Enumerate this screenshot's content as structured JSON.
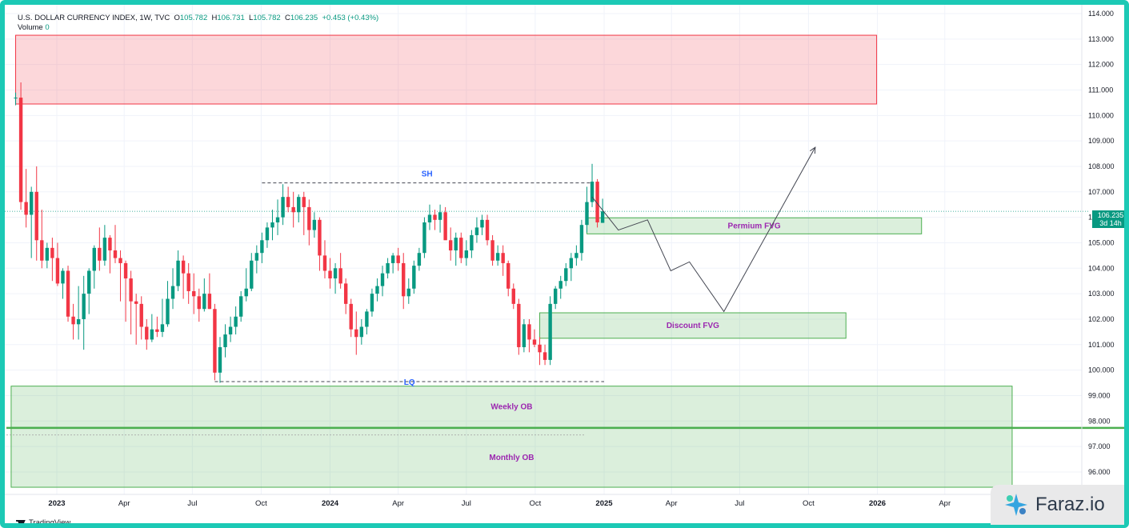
{
  "header": {
    "symbol": "U.S. DOLLAR CURRENCY INDEX, 1W, TVC",
    "open_label": "O",
    "open": "105.782",
    "high_label": "H",
    "high": "106.731",
    "low_label": "L",
    "low": "105.782",
    "close_label": "C",
    "close": "106.235",
    "change": "+0.453 (+0.43%)",
    "volume_label": "Volume",
    "volume": "0"
  },
  "price_tag": {
    "value": "106.235",
    "countdown": "3d 14h"
  },
  "brand": {
    "tradingview": "TradingView",
    "watermark": "Faraz.io"
  },
  "colors": {
    "up": "#089981",
    "down": "#f23645",
    "zone_green": "#4caf50",
    "zone_red": "#f23645",
    "label_purple": "#9c27b0",
    "annotation_blue": "#2962ff",
    "frame": "#1cc9b5"
  },
  "chart_data": {
    "type": "candlestick",
    "title": "U.S. DOLLAR CURRENCY INDEX, 1W, TVC",
    "timeframe": "1W",
    "ylim": [
      95.2,
      114.2
    ],
    "y_ticks": [
      "114.000",
      "113.000",
      "112.000",
      "111.000",
      "110.000",
      "109.000",
      "108.000",
      "107.000",
      "106.000",
      "105.000",
      "104.000",
      "103.000",
      "102.000",
      "101.000",
      "100.000",
      "99.000",
      "98.000",
      "97.000",
      "96.000"
    ],
    "x_ticks": [
      {
        "label": "2023",
        "date": "2023-01-01",
        "year": true
      },
      {
        "label": "Apr",
        "date": "2023-04-01"
      },
      {
        "label": "Jul",
        "date": "2023-07-01"
      },
      {
        "label": "Oct",
        "date": "2023-10-01"
      },
      {
        "label": "2024",
        "date": "2024-01-01",
        "year": true
      },
      {
        "label": "Apr",
        "date": "2024-04-01"
      },
      {
        "label": "Jul",
        "date": "2024-07-01"
      },
      {
        "label": "Oct",
        "date": "2024-10-01"
      },
      {
        "label": "2025",
        "date": "2025-01-01",
        "year": true
      },
      {
        "label": "Apr",
        "date": "2025-04-01"
      },
      {
        "label": "Jul",
        "date": "2025-07-01"
      },
      {
        "label": "Oct",
        "date": "2025-10-01"
      },
      {
        "label": "2026",
        "date": "2026-01-01",
        "year": true
      },
      {
        "label": "Apr",
        "date": "2026-04-01"
      }
    ],
    "candles": [
      {
        "t": "2022-11-07",
        "o": 110.7,
        "h": 110.9,
        "l": 110.4,
        "c": 110.7
      },
      {
        "t": "2022-11-14",
        "o": 110.7,
        "h": 111.3,
        "l": 106.3,
        "c": 106.6
      },
      {
        "t": "2022-11-21",
        "o": 106.6,
        "h": 107.9,
        "l": 105.6,
        "c": 106.1
      },
      {
        "t": "2022-11-28",
        "o": 106.1,
        "h": 107.2,
        "l": 104.4,
        "c": 107.0
      },
      {
        "t": "2022-12-05",
        "o": 107.0,
        "h": 108.0,
        "l": 104.3,
        "c": 105.1
      },
      {
        "t": "2022-12-12",
        "o": 105.1,
        "h": 106.3,
        "l": 104.0,
        "c": 104.3
      },
      {
        "t": "2022-12-19",
        "o": 104.3,
        "h": 105.0,
        "l": 104.0,
        "c": 104.8
      },
      {
        "t": "2022-12-26",
        "o": 104.8,
        "h": 105.2,
        "l": 103.5,
        "c": 104.4
      },
      {
        "t": "2023-01-02",
        "o": 104.4,
        "h": 105.0,
        "l": 103.3,
        "c": 103.4
      },
      {
        "t": "2023-01-09",
        "o": 103.4,
        "h": 104.0,
        "l": 102.8,
        "c": 103.9
      },
      {
        "t": "2023-01-16",
        "o": 103.9,
        "h": 104.1,
        "l": 101.9,
        "c": 102.1
      },
      {
        "t": "2023-01-23",
        "o": 102.1,
        "h": 102.6,
        "l": 101.2,
        "c": 101.8
      },
      {
        "t": "2023-01-30",
        "o": 101.8,
        "h": 103.3,
        "l": 101.2,
        "c": 102.0
      },
      {
        "t": "2023-02-06",
        "o": 102.0,
        "h": 103.7,
        "l": 100.8,
        "c": 103.0
      },
      {
        "t": "2023-02-13",
        "o": 103.0,
        "h": 104.0,
        "l": 102.2,
        "c": 103.9
      },
      {
        "t": "2023-02-20",
        "o": 103.9,
        "h": 104.9,
        "l": 103.2,
        "c": 104.8
      },
      {
        "t": "2023-02-27",
        "o": 104.8,
        "h": 105.6,
        "l": 103.9,
        "c": 104.3
      },
      {
        "t": "2023-03-06",
        "o": 104.3,
        "h": 105.7,
        "l": 104.1,
        "c": 105.2
      },
      {
        "t": "2023-03-13",
        "o": 105.2,
        "h": 105.3,
        "l": 103.8,
        "c": 104.7
      },
      {
        "t": "2023-03-20",
        "o": 104.7,
        "h": 105.7,
        "l": 104.2,
        "c": 104.4
      },
      {
        "t": "2023-03-27",
        "o": 104.4,
        "h": 104.7,
        "l": 102.7,
        "c": 104.2
      },
      {
        "t": "2023-04-03",
        "o": 104.2,
        "h": 104.3,
        "l": 101.9,
        "c": 103.6
      },
      {
        "t": "2023-04-10",
        "o": 103.6,
        "h": 103.9,
        "l": 101.4,
        "c": 102.7
      },
      {
        "t": "2023-04-17",
        "o": 102.7,
        "h": 103.0,
        "l": 101.0,
        "c": 102.6
      },
      {
        "t": "2023-04-24",
        "o": 102.6,
        "h": 102.9,
        "l": 101.2,
        "c": 101.7
      },
      {
        "t": "2023-05-01",
        "o": 101.7,
        "h": 102.0,
        "l": 100.8,
        "c": 101.2
      },
      {
        "t": "2023-05-08",
        "o": 101.2,
        "h": 102.2,
        "l": 101.1,
        "c": 101.6
      },
      {
        "t": "2023-05-15",
        "o": 101.6,
        "h": 102.1,
        "l": 101.3,
        "c": 101.5
      },
      {
        "t": "2023-05-22",
        "o": 101.5,
        "h": 102.8,
        "l": 101.3,
        "c": 101.8
      },
      {
        "t": "2023-05-29",
        "o": 101.8,
        "h": 103.5,
        "l": 101.7,
        "c": 102.8
      },
      {
        "t": "2023-06-05",
        "o": 102.8,
        "h": 104.0,
        "l": 102.4,
        "c": 103.3
      },
      {
        "t": "2023-06-12",
        "o": 103.3,
        "h": 104.7,
        "l": 103.1,
        "c": 104.3
      },
      {
        "t": "2023-06-19",
        "o": 104.3,
        "h": 104.5,
        "l": 102.8,
        "c": 103.8
      },
      {
        "t": "2023-06-26",
        "o": 103.8,
        "h": 104.2,
        "l": 102.6,
        "c": 103.1
      },
      {
        "t": "2023-07-03",
        "o": 103.1,
        "h": 103.8,
        "l": 102.2,
        "c": 102.9
      },
      {
        "t": "2023-07-10",
        "o": 102.9,
        "h": 103.2,
        "l": 101.9,
        "c": 102.4
      },
      {
        "t": "2023-07-17",
        "o": 102.4,
        "h": 103.6,
        "l": 102.3,
        "c": 103.0
      },
      {
        "t": "2023-07-24",
        "o": 103.0,
        "h": 103.8,
        "l": 102.4,
        "c": 102.4
      },
      {
        "t": "2023-07-31",
        "o": 102.4,
        "h": 102.6,
        "l": 99.6,
        "c": 99.9
      },
      {
        "t": "2023-08-07",
        "o": 99.9,
        "h": 101.3,
        "l": 99.5,
        "c": 100.9
      },
      {
        "t": "2023-08-14",
        "o": 100.9,
        "h": 101.8,
        "l": 100.5,
        "c": 101.4
      },
      {
        "t": "2023-08-21",
        "o": 101.4,
        "h": 102.1,
        "l": 101.1,
        "c": 101.7
      },
      {
        "t": "2023-08-28",
        "o": 101.7,
        "h": 102.5,
        "l": 101.4,
        "c": 102.1
      },
      {
        "t": "2023-09-04",
        "o": 102.1,
        "h": 103.1,
        "l": 101.9,
        "c": 102.9
      },
      {
        "t": "2023-09-11",
        "o": 102.9,
        "h": 104.0,
        "l": 102.7,
        "c": 103.2
      },
      {
        "t": "2023-09-18",
        "o": 103.2,
        "h": 104.6,
        "l": 103.1,
        "c": 104.3
      },
      {
        "t": "2023-09-25",
        "o": 104.3,
        "h": 104.9,
        "l": 103.8,
        "c": 104.6
      },
      {
        "t": "2023-10-02",
        "o": 104.6,
        "h": 105.4,
        "l": 104.2,
        "c": 105.1
      },
      {
        "t": "2023-10-09",
        "o": 105.1,
        "h": 105.8,
        "l": 104.8,
        "c": 105.6
      },
      {
        "t": "2023-10-16",
        "o": 105.6,
        "h": 106.3,
        "l": 105.1,
        "c": 105.8
      },
      {
        "t": "2023-10-23",
        "o": 105.8,
        "h": 106.7,
        "l": 105.3,
        "c": 106.0
      },
      {
        "t": "2023-10-30",
        "o": 106.0,
        "h": 107.3,
        "l": 105.7,
        "c": 106.8
      },
      {
        "t": "2023-11-06",
        "o": 106.8,
        "h": 107.2,
        "l": 106.2,
        "c": 106.4
      },
      {
        "t": "2023-11-13",
        "o": 106.4,
        "h": 107.0,
        "l": 105.6,
        "c": 106.2
      },
      {
        "t": "2023-11-20",
        "o": 106.2,
        "h": 106.9,
        "l": 105.8,
        "c": 106.8
      },
      {
        "t": "2023-11-27",
        "o": 106.8,
        "h": 107.0,
        "l": 105.3,
        "c": 106.4
      },
      {
        "t": "2023-12-04",
        "o": 106.4,
        "h": 106.7,
        "l": 104.9,
        "c": 105.5
      },
      {
        "t": "2023-12-11",
        "o": 105.5,
        "h": 106.2,
        "l": 105.2,
        "c": 105.9
      },
      {
        "t": "2023-12-18",
        "o": 105.9,
        "h": 106.0,
        "l": 103.9,
        "c": 104.5
      },
      {
        "t": "2023-12-25",
        "o": 104.5,
        "h": 105.1,
        "l": 103.6,
        "c": 103.9
      },
      {
        "t": "2024-01-01",
        "o": 103.9,
        "h": 104.4,
        "l": 103.2,
        "c": 103.6
      },
      {
        "t": "2024-01-08",
        "o": 103.6,
        "h": 104.2,
        "l": 103.0,
        "c": 104.0
      },
      {
        "t": "2024-01-15",
        "o": 104.0,
        "h": 104.6,
        "l": 103.2,
        "c": 103.4
      },
      {
        "t": "2024-01-22",
        "o": 103.4,
        "h": 103.6,
        "l": 102.2,
        "c": 102.6
      },
      {
        "t": "2024-01-29",
        "o": 102.6,
        "h": 102.8,
        "l": 101.3,
        "c": 101.6
      },
      {
        "t": "2024-02-05",
        "o": 101.6,
        "h": 102.3,
        "l": 100.6,
        "c": 101.3
      },
      {
        "t": "2024-02-12",
        "o": 101.3,
        "h": 102.0,
        "l": 101.0,
        "c": 101.7
      },
      {
        "t": "2024-02-19",
        "o": 101.7,
        "h": 102.4,
        "l": 101.4,
        "c": 102.3
      },
      {
        "t": "2024-02-26",
        "o": 102.3,
        "h": 103.2,
        "l": 102.1,
        "c": 103.0
      },
      {
        "t": "2024-03-04",
        "o": 103.0,
        "h": 103.6,
        "l": 102.7,
        "c": 103.3
      },
      {
        "t": "2024-03-11",
        "o": 103.3,
        "h": 104.1,
        "l": 102.9,
        "c": 103.8
      },
      {
        "t": "2024-03-18",
        "o": 103.8,
        "h": 104.4,
        "l": 103.6,
        "c": 104.2
      },
      {
        "t": "2024-03-25",
        "o": 104.2,
        "h": 104.6,
        "l": 103.8,
        "c": 104.5
      },
      {
        "t": "2024-04-01",
        "o": 104.5,
        "h": 104.8,
        "l": 103.9,
        "c": 104.2
      },
      {
        "t": "2024-04-08",
        "o": 104.2,
        "h": 104.6,
        "l": 102.4,
        "c": 102.9
      },
      {
        "t": "2024-04-15",
        "o": 102.9,
        "h": 103.6,
        "l": 102.6,
        "c": 103.2
      },
      {
        "t": "2024-04-22",
        "o": 103.2,
        "h": 104.3,
        "l": 103.0,
        "c": 104.1
      },
      {
        "t": "2024-04-29",
        "o": 104.1,
        "h": 104.8,
        "l": 103.9,
        "c": 104.6
      },
      {
        "t": "2024-05-06",
        "o": 104.6,
        "h": 106.0,
        "l": 104.4,
        "c": 105.8
      },
      {
        "t": "2024-05-13",
        "o": 105.8,
        "h": 106.5,
        "l": 105.5,
        "c": 106.1
      },
      {
        "t": "2024-05-20",
        "o": 106.1,
        "h": 106.3,
        "l": 105.5,
        "c": 105.9
      },
      {
        "t": "2024-05-27",
        "o": 105.9,
        "h": 106.5,
        "l": 105.4,
        "c": 106.2
      },
      {
        "t": "2024-06-03",
        "o": 106.2,
        "h": 106.4,
        "l": 105.2,
        "c": 105.1
      },
      {
        "t": "2024-06-10",
        "o": 105.1,
        "h": 105.6,
        "l": 104.3,
        "c": 104.7
      },
      {
        "t": "2024-06-17",
        "o": 104.7,
        "h": 105.4,
        "l": 104.1,
        "c": 105.2
      },
      {
        "t": "2024-06-24",
        "o": 105.2,
        "h": 105.4,
        "l": 104.2,
        "c": 104.4
      },
      {
        "t": "2024-07-01",
        "o": 104.4,
        "h": 105.1,
        "l": 104.1,
        "c": 104.7
      },
      {
        "t": "2024-07-08",
        "o": 104.7,
        "h": 105.5,
        "l": 104.4,
        "c": 105.3
      },
      {
        "t": "2024-07-15",
        "o": 105.3,
        "h": 106.0,
        "l": 105.0,
        "c": 105.6
      },
      {
        "t": "2024-07-22",
        "o": 105.6,
        "h": 106.1,
        "l": 105.3,
        "c": 105.9
      },
      {
        "t": "2024-07-29",
        "o": 105.9,
        "h": 106.1,
        "l": 104.9,
        "c": 105.1
      },
      {
        "t": "2024-08-05",
        "o": 105.1,
        "h": 105.3,
        "l": 104.1,
        "c": 104.3
      },
      {
        "t": "2024-08-12",
        "o": 104.3,
        "h": 104.9,
        "l": 104.1,
        "c": 104.6
      },
      {
        "t": "2024-08-19",
        "o": 104.6,
        "h": 104.9,
        "l": 103.7,
        "c": 104.2
      },
      {
        "t": "2024-08-26",
        "o": 104.2,
        "h": 104.3,
        "l": 102.9,
        "c": 103.2
      },
      {
        "t": "2024-09-02",
        "o": 103.2,
        "h": 103.4,
        "l": 102.4,
        "c": 102.6
      },
      {
        "t": "2024-09-09",
        "o": 102.6,
        "h": 102.8,
        "l": 100.6,
        "c": 100.9
      },
      {
        "t": "2024-09-16",
        "o": 100.9,
        "h": 102.0,
        "l": 100.7,
        "c": 101.8
      },
      {
        "t": "2024-09-23",
        "o": 101.8,
        "h": 102.0,
        "l": 100.7,
        "c": 101.2
      },
      {
        "t": "2024-09-30",
        "o": 101.2,
        "h": 101.6,
        "l": 100.9,
        "c": 101.0
      },
      {
        "t": "2024-10-07",
        "o": 101.0,
        "h": 101.3,
        "l": 100.2,
        "c": 100.7
      },
      {
        "t": "2024-10-14",
        "o": 100.7,
        "h": 101.0,
        "l": 100.2,
        "c": 100.4
      },
      {
        "t": "2024-10-21",
        "o": 100.4,
        "h": 102.9,
        "l": 100.2,
        "c": 102.6
      },
      {
        "t": "2024-10-28",
        "o": 102.6,
        "h": 103.3,
        "l": 102.4,
        "c": 103.2
      },
      {
        "t": "2024-11-04",
        "o": 103.2,
        "h": 103.7,
        "l": 102.8,
        "c": 103.5
      },
      {
        "t": "2024-11-11",
        "o": 103.5,
        "h": 104.2,
        "l": 103.3,
        "c": 104.0
      },
      {
        "t": "2024-11-18",
        "o": 104.0,
        "h": 104.6,
        "l": 103.5,
        "c": 104.4
      },
      {
        "t": "2024-11-25",
        "o": 104.4,
        "h": 104.9,
        "l": 104.1,
        "c": 104.6
      },
      {
        "t": "2024-12-02",
        "o": 104.6,
        "h": 105.9,
        "l": 104.3,
        "c": 105.7
      },
      {
        "t": "2024-12-09",
        "o": 105.7,
        "h": 107.2,
        "l": 105.4,
        "c": 106.6
      },
      {
        "t": "2024-12-16",
        "o": 106.6,
        "h": 108.1,
        "l": 106.4,
        "c": 107.4
      },
      {
        "t": "2024-12-23",
        "o": 107.4,
        "h": 107.5,
        "l": 105.6,
        "c": 105.8
      },
      {
        "t": "2024-12-30",
        "o": 105.782,
        "h": 106.731,
        "l": 105.782,
        "c": 106.235
      }
    ],
    "current_price": 106.235,
    "annotations": [
      {
        "label": "SH",
        "kind": "dashed-level",
        "price": 107.35,
        "from": "2023-10-02",
        "to": "2024-12-16"
      },
      {
        "label": "LQ",
        "kind": "dashed-level",
        "price": 99.55,
        "from": "2023-07-31",
        "to": "2025-01-01"
      }
    ],
    "zones": [
      {
        "label": "",
        "color": "red",
        "top": 113.15,
        "bottom": 110.45,
        "from": "2022-11-07",
        "to": "2025-12-31"
      },
      {
        "label": "Permium FVG",
        "color": "green",
        "top": 105.98,
        "bottom": 105.35,
        "from": "2024-12-09",
        "to": "2026-03-01"
      },
      {
        "label": "Discount FVG",
        "color": "green",
        "top": 102.25,
        "bottom": 101.25,
        "from": "2024-10-07",
        "to": "2025-11-20"
      },
      {
        "label": "Weekly OB",
        "color": "green",
        "top": 99.37,
        "bottom": 97.75,
        "from": "2022-11-01",
        "to": "2026-06-30"
      },
      {
        "label": "Monthly OB",
        "color": "green",
        "top": 97.72,
        "bottom": 95.4,
        "from": "2022-11-01",
        "to": "2026-06-30"
      }
    ],
    "projection": [
      {
        "t": "2024-12-16",
        "p": 106.8
      },
      {
        "t": "2025-01-20",
        "p": 105.5
      },
      {
        "t": "2025-02-28",
        "p": 105.9
      },
      {
        "t": "2025-03-31",
        "p": 103.9
      },
      {
        "t": "2025-04-25",
        "p": 104.25
      },
      {
        "t": "2025-06-10",
        "p": 102.3
      },
      {
        "t": "2025-10-10",
        "p": 108.75
      }
    ]
  }
}
